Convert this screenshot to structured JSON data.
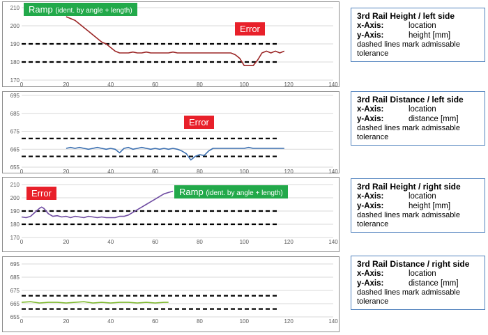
{
  "colors": {
    "error_tag": "#e8202a",
    "ramp_tag": "#22a94a",
    "series_red": "#9b2626",
    "series_blue": "#3b6fb0",
    "series_purple": "#6f4ca2",
    "series_green": "#7fba2e",
    "legend_border": "#4f81bd"
  },
  "panels": [
    {
      "legend": {
        "title": "3rd Rail Height / left side",
        "x_key": "x-Axis:",
        "x_val": "location",
        "y_key": "y-Axis:",
        "y_val": "height [mm]",
        "note": "dashed lines mark admissable tolerance"
      },
      "tags": {
        "ramp_main": "Ramp",
        "ramp_small": "(ident. by angle + length)",
        "error": "Error"
      }
    },
    {
      "legend": {
        "title": "3rd Rail Distance / left side",
        "x_key": "x-Axis:",
        "x_val": "location",
        "y_key": "y-Axis:",
        "y_val": "distance [mm]",
        "note": "dashed lines mark admissable tolerance"
      },
      "tags": {
        "error": "Error"
      }
    },
    {
      "legend": {
        "title": "3rd Rail Height / right side",
        "x_key": "x-Axis:",
        "x_val": "location",
        "y_key": "y-Axis:",
        "y_val": "height [mm]",
        "note": "dashed lines mark admissable tolerance"
      },
      "tags": {
        "error": "Error",
        "ramp_main": "Ramp",
        "ramp_small": "(ident. by angle + length)"
      }
    },
    {
      "legend": {
        "title": "3rd Rail Distance / right side",
        "x_key": "x-Axis:",
        "x_val": "location",
        "y_key": "y-Axis:",
        "y_val": "distance [mm]",
        "note": "dashed lines mark admissable tolerance"
      },
      "tags": {}
    }
  ],
  "chart_data": [
    {
      "type": "line",
      "xlim": [
        0,
        140
      ],
      "ylim": [
        170,
        210
      ],
      "xticks": [
        0,
        20,
        40,
        60,
        80,
        100,
        120,
        140
      ],
      "yticks": [
        170,
        180,
        190,
        200,
        210
      ],
      "grid": true,
      "tolerance": [
        190,
        180
      ],
      "tolerance_x": [
        0,
        115
      ],
      "series": [
        {
          "color": "#9b2626",
          "x": [
            20,
            22,
            24,
            26,
            28,
            30,
            32,
            34,
            36,
            38,
            40,
            42,
            44,
            46,
            48,
            50,
            52,
            54,
            56,
            58,
            60,
            62,
            64,
            66,
            68,
            70,
            72,
            74,
            76,
            78,
            80,
            82,
            84,
            86,
            88,
            90,
            92,
            94,
            96,
            98,
            100,
            102,
            104,
            106,
            108,
            110,
            112,
            114,
            116,
            118
          ],
          "y": [
            205,
            204,
            203,
            201,
            199,
            197,
            195,
            193,
            191,
            190,
            188,
            186,
            185,
            185,
            185,
            185.5,
            185,
            185,
            185.5,
            185,
            185,
            185,
            185,
            185,
            185.5,
            185,
            185,
            185,
            185,
            185,
            185,
            185,
            185,
            185,
            185,
            185,
            185,
            185,
            184,
            182,
            178,
            178,
            178,
            181,
            185,
            186,
            185,
            186,
            185,
            186
          ]
        }
      ]
    },
    {
      "type": "line",
      "xlim": [
        0,
        140
      ],
      "ylim": [
        655,
        695
      ],
      "xticks": [
        0,
        20,
        40,
        60,
        80,
        100,
        120,
        140
      ],
      "yticks": [
        655,
        665,
        675,
        685,
        695
      ],
      "grid": true,
      "tolerance": [
        671,
        661
      ],
      "tolerance_x": [
        0,
        115
      ],
      "series": [
        {
          "color": "#3b6fb0",
          "x": [
            20,
            22,
            24,
            26,
            28,
            30,
            32,
            34,
            36,
            38,
            40,
            42,
            44,
            46,
            48,
            50,
            52,
            54,
            56,
            58,
            60,
            62,
            64,
            66,
            68,
            70,
            72,
            74,
            76,
            78,
            80,
            82,
            84,
            86,
            88,
            90,
            92,
            94,
            96,
            98,
            100,
            102,
            104,
            106,
            108,
            110,
            112,
            114,
            116,
            118
          ],
          "y": [
            665.5,
            666,
            665.5,
            666,
            665.5,
            665,
            665.5,
            666,
            665.5,
            665,
            665.5,
            665,
            663,
            665.5,
            666,
            665,
            665.5,
            666,
            665.5,
            665,
            665.5,
            665,
            665.5,
            665,
            665.5,
            665,
            664,
            662.5,
            659,
            661,
            662,
            661.5,
            664,
            665.5,
            665.5,
            665.5,
            665.5,
            665.5,
            665.5,
            665.5,
            665.5,
            666,
            665.5,
            665.5,
            665.5,
            665.5,
            665.5,
            665.5,
            665.5,
            665.5
          ]
        }
      ]
    },
    {
      "type": "line",
      "xlim": [
        0,
        140
      ],
      "ylim": [
        170,
        210
      ],
      "xticks": [
        0,
        20,
        40,
        60,
        80,
        100,
        120,
        140
      ],
      "yticks": [
        170,
        180,
        190,
        200,
        210
      ],
      "grid": true,
      "tolerance": [
        190,
        180
      ],
      "tolerance_x": [
        0,
        115
      ],
      "series": [
        {
          "color": "#6f4ca2",
          "x": [
            0,
            2,
            4,
            6,
            8,
            9,
            10,
            12,
            14,
            16,
            18,
            20,
            22,
            24,
            26,
            28,
            30,
            32,
            34,
            36,
            38,
            40,
            42,
            44,
            46,
            48,
            50,
            52,
            54,
            56,
            58,
            60,
            62,
            64,
            66,
            68
          ],
          "y": [
            185.5,
            185,
            186,
            189,
            192,
            193,
            192,
            188,
            186,
            186.5,
            185.5,
            186,
            185,
            186,
            185.5,
            185,
            186,
            185.5,
            185,
            185.5,
            185,
            185,
            185,
            186,
            186,
            187,
            189,
            191,
            193,
            195,
            197,
            199,
            201,
            203,
            204,
            205
          ]
        }
      ]
    },
    {
      "type": "line",
      "xlim": [
        0,
        140
      ],
      "ylim": [
        655,
        695
      ],
      "xticks": [
        0,
        20,
        40,
        60,
        80,
        100,
        120,
        140
      ],
      "yticks": [
        655,
        665,
        675,
        685,
        695
      ],
      "grid": true,
      "tolerance": [
        671,
        661
      ],
      "tolerance_x": [
        0,
        115
      ],
      "series": [
        {
          "color": "#7fba2e",
          "x": [
            0,
            4,
            8,
            12,
            16,
            20,
            24,
            28,
            32,
            36,
            40,
            44,
            48,
            52,
            56,
            60,
            64,
            66
          ],
          "y": [
            666,
            666.5,
            665.5,
            666,
            666,
            665.5,
            666,
            666.5,
            665.5,
            666,
            665.5,
            666,
            666,
            665.5,
            666,
            665.5,
            666,
            666
          ]
        }
      ]
    }
  ]
}
